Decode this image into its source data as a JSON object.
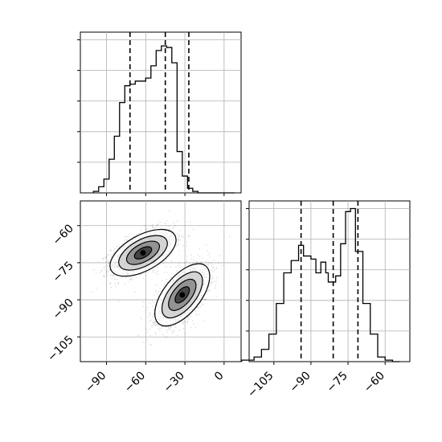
{
  "chart_data": [
    {
      "type": "histogram",
      "panel": "marginal-x",
      "bins_x": [
        -100.0,
        -96.0,
        -92.0,
        -88.0,
        -84.0,
        -80.0,
        -76.0,
        -72.0,
        -68.0,
        -64.0,
        -60.0,
        -56.0,
        -52.0,
        -48.0,
        -44.0,
        -40.0,
        -36.0,
        -32.0,
        -28.0,
        -24.0,
        -20.0,
        -16.0,
        -12.0,
        -8.0,
        -4.0,
        0.0,
        4.0,
        8.0
      ],
      "counts": [
        0.01,
        0.04,
        0.09,
        0.22,
        0.37,
        0.59,
        0.7,
        0.71,
        0.73,
        0.73,
        0.75,
        0.83,
        0.93,
        0.96,
        0.95,
        0.85,
        0.27,
        0.11,
        0.03,
        0.01,
        0.0,
        0.0,
        0.0,
        0.0,
        0.0,
        0.0,
        0.0
      ],
      "quantile_lines": [
        -72,
        -45,
        -27
      ],
      "xlim": [
        -110,
        13
      ],
      "ylim": [
        0,
        1.05
      ],
      "x_ticks": [
        -90,
        -60,
        -30,
        0
      ],
      "grid": true
    },
    {
      "type": "histogram",
      "panel": "marginal-y",
      "bins_x": [
        -118.0,
        -113.0,
        -110.0,
        -107.0,
        -104.0,
        -101.0,
        -98.0,
        -95.0,
        -93.0,
        -90.0,
        -88.0,
        -86.0,
        -84.0,
        -83.0,
        -80.0,
        -78.0,
        -76.0,
        -74.0,
        -72.0,
        -69.0,
        -66.0,
        -63.0,
        -60.0,
        -57.0,
        -54.0
      ],
      "counts": [
        0.01,
        0.03,
        0.08,
        0.18,
        0.38,
        0.58,
        0.66,
        0.76,
        0.69,
        0.67,
        0.58,
        0.65,
        0.58,
        0.52,
        0.56,
        0.77,
        0.98,
        1.0,
        0.72,
        0.38,
        0.18,
        0.03,
        0.01,
        0.0
      ],
      "quantile_lines": [
        -94,
        -81,
        -71
      ],
      "xlim": [
        -115,
        -50
      ],
      "ylim": [
        0,
        1.05
      ],
      "x_ticks": [
        -105,
        -90,
        -75,
        -60
      ],
      "grid": true
    },
    {
      "type": "scatter",
      "panel": "joint",
      "description_free": true,
      "xlim": [
        -110,
        13
      ],
      "ylim": [
        -115,
        -50
      ],
      "x_ticks": [
        -90,
        -60,
        -30,
        0
      ],
      "y_ticks": [
        -60,
        -75,
        -90,
        -105
      ],
      "clusters": [
        {
          "cx": -62,
          "cy": -71,
          "sx": 12,
          "sy": 4.5,
          "rho": 0.55
        },
        {
          "cx": -32,
          "cy": -88,
          "sx": 10,
          "sy": 6,
          "rho": 0.6
        }
      ],
      "points_per_cluster": 1800,
      "contour_levels": [
        0.12,
        0.35,
        0.65,
        0.9
      ],
      "grid": true
    }
  ]
}
